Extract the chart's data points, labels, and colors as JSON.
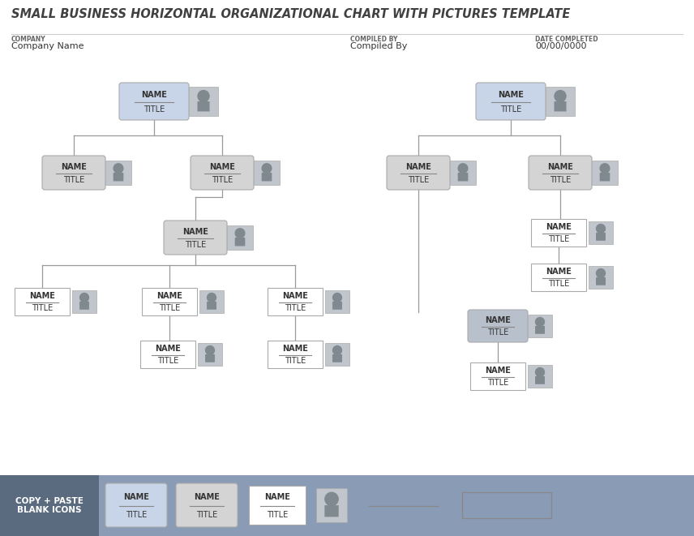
{
  "title": "SMALL BUSINESS HORIZONTAL ORGANIZATIONAL CHART WITH PICTURES TEMPLATE",
  "company_label": "COMPANY",
  "company_value": "Company Name",
  "compiled_label": "COMPILED BY",
  "compiled_value": "Compiled By",
  "date_label": "DATE COMPLETED",
  "date_value": "00/00/0000",
  "bg_color": "#ffffff",
  "title_color": "#404040",
  "box_blue_fill": "#c8d4e8",
  "box_gray_fill": "#d4d4d4",
  "box_white_fill": "#ffffff",
  "box_dgray_fill": "#b8c0cc",
  "line_color": "#999999",
  "footer_bg": "#8a9bb5",
  "footer_text_color": "#ffffff",
  "footer_dark_bg": "#5a6b80",
  "node_name": "NAME",
  "node_title": "TITLE",
  "footer_label": "COPY + PASTE\nBLANK ICONS",
  "icon_person_color": "#808890",
  "icon_bg_color": "#c0c6cc"
}
